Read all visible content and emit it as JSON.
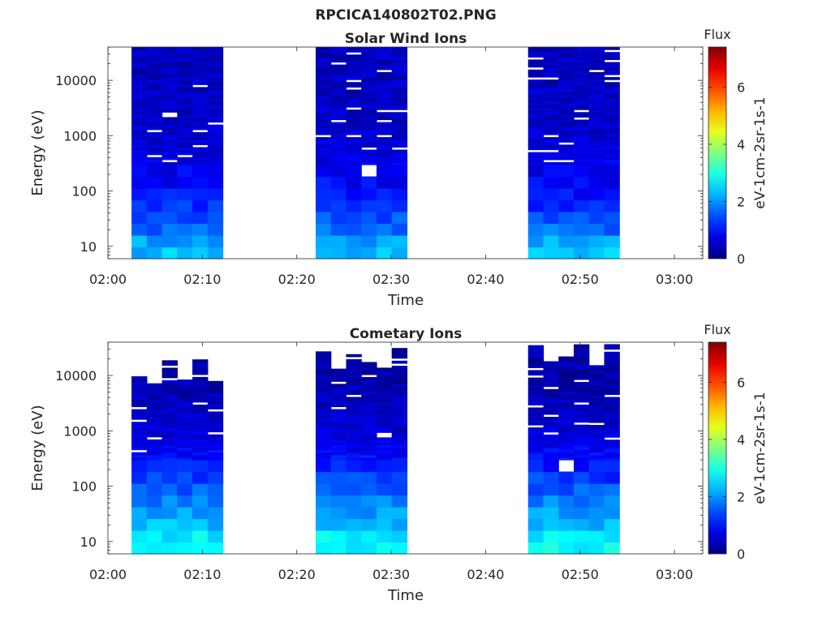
{
  "figure": {
    "title": "RPCICA140802T02.PNG"
  },
  "chart_data": [
    {
      "type": "heatmap",
      "title": "Solar Wind Ions",
      "xlabel": "Time",
      "ylabel": "Energy (eV)",
      "y_scale": "log",
      "ylim": [
        6,
        40000
      ],
      "xlim": [
        "02:00",
        "03:03"
      ],
      "x_ticks": [
        "02:00",
        "02:10",
        "02:20",
        "02:30",
        "02:40",
        "02:50",
        "03:00"
      ],
      "y_ticks": [
        "10",
        "100",
        "1000",
        "10000"
      ],
      "colorbar": {
        "title": "Flux",
        "label": "eV-1cm-2sr-1s-1",
        "min": 0,
        "max": 7.4,
        "ticks": [
          "0",
          "2",
          "4",
          "6"
        ],
        "colormap": "jet"
      },
      "grid": false,
      "data_blocks": [
        {
          "start": "02:02:30",
          "end": "02:12:10",
          "energy_min": 6,
          "energy_max": 40000
        },
        {
          "start": "02:22:00",
          "end": "02:31:40",
          "energy_min": 6,
          "energy_max": 40000
        },
        {
          "start": "02:44:30",
          "end": "02:54:10",
          "energy_min": 6,
          "energy_max": 40000
        }
      ],
      "flux_profile": [
        {
          "energy": 10,
          "flux": 2.3
        },
        {
          "energy": 20,
          "flux": 1.7
        },
        {
          "energy": 50,
          "flux": 1.3
        },
        {
          "energy": 100,
          "flux": 1.0
        },
        {
          "energy": 300,
          "flux": 0.8
        },
        {
          "energy": 1000,
          "flux": 0.55
        },
        {
          "energy": 10000,
          "flux": 0.45
        }
      ]
    },
    {
      "type": "heatmap",
      "title": "Cometary Ions",
      "xlabel": "Time",
      "ylabel": "Energy (eV)",
      "y_scale": "log",
      "ylim": [
        6,
        40000
      ],
      "xlim": [
        "02:00",
        "03:03"
      ],
      "x_ticks": [
        "02:00",
        "02:10",
        "02:20",
        "02:30",
        "02:40",
        "02:50",
        "03:00"
      ],
      "y_ticks": [
        "10",
        "100",
        "1000",
        "10000"
      ],
      "colorbar": {
        "title": "Flux",
        "label": "eV-1cm-2sr-1s-1",
        "min": 0,
        "max": 7.4,
        "ticks": [
          "0",
          "2",
          "4",
          "6"
        ],
        "colormap": "jet"
      },
      "grid": false,
      "data_blocks": [
        {
          "start": "02:02:30",
          "end": "02:12:10",
          "energy_min": 6,
          "energy_max": 20000
        },
        {
          "start": "02:22:00",
          "end": "02:31:40",
          "energy_min": 6,
          "energy_max": 33000
        },
        {
          "start": "02:44:30",
          "end": "02:54:10",
          "energy_min": 6,
          "energy_max": 40000
        }
      ],
      "flux_profile": [
        {
          "energy": 10,
          "flux": 2.8
        },
        {
          "energy": 20,
          "flux": 2.3
        },
        {
          "energy": 50,
          "flux": 1.9
        },
        {
          "energy": 100,
          "flux": 1.5
        },
        {
          "energy": 300,
          "flux": 1.0
        },
        {
          "energy": 1000,
          "flux": 0.6
        },
        {
          "energy": 10000,
          "flux": 0.3
        }
      ]
    }
  ]
}
